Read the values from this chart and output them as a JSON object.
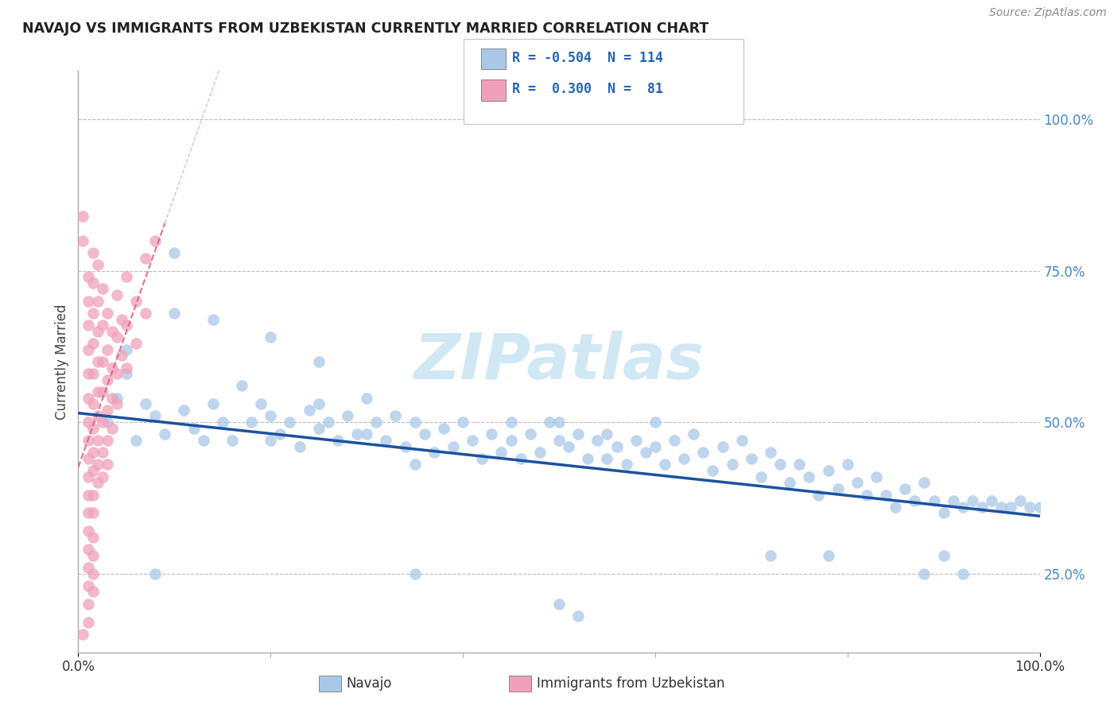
{
  "title": "NAVAJO VS IMMIGRANTS FROM UZBEKISTAN CURRENTLY MARRIED CORRELATION CHART",
  "source": "Source: ZipAtlas.com",
  "ylabel": "Currently Married",
  "ylabel_right_labels": [
    "100.0%",
    "75.0%",
    "50.0%",
    "25.0%"
  ],
  "ylabel_right_positions": [
    1.0,
    0.75,
    0.5,
    0.25
  ],
  "navajo_color": "#a8c8e8",
  "uzbekistan_color": "#f0a0b8",
  "navajo_line_color": "#1a52a0",
  "uzbekistan_line_color": "#e06080",
  "watermark_color": "#d0e8f4",
  "background_color": "#ffffff",
  "grid_color": "#cccccc",
  "navajo_R": -0.504,
  "navajo_N": 114,
  "uzbekistan_R": 0.3,
  "uzbekistan_N": 81,
  "xlim": [
    0.0,
    1.0
  ],
  "ylim": [
    0.12,
    1.08
  ],
  "navajo_scatter": [
    [
      0.03,
      0.5
    ],
    [
      0.04,
      0.54
    ],
    [
      0.05,
      0.62
    ],
    [
      0.05,
      0.58
    ],
    [
      0.06,
      0.47
    ],
    [
      0.07,
      0.53
    ],
    [
      0.08,
      0.51
    ],
    [
      0.09,
      0.48
    ],
    [
      0.1,
      0.68
    ],
    [
      0.11,
      0.52
    ],
    [
      0.12,
      0.49
    ],
    [
      0.13,
      0.47
    ],
    [
      0.14,
      0.53
    ],
    [
      0.15,
      0.5
    ],
    [
      0.16,
      0.47
    ],
    [
      0.17,
      0.56
    ],
    [
      0.18,
      0.5
    ],
    [
      0.19,
      0.53
    ],
    [
      0.2,
      0.47
    ],
    [
      0.2,
      0.51
    ],
    [
      0.21,
      0.48
    ],
    [
      0.22,
      0.5
    ],
    [
      0.23,
      0.46
    ],
    [
      0.24,
      0.52
    ],
    [
      0.25,
      0.49
    ],
    [
      0.25,
      0.53
    ],
    [
      0.26,
      0.5
    ],
    [
      0.27,
      0.47
    ],
    [
      0.28,
      0.51
    ],
    [
      0.29,
      0.48
    ],
    [
      0.3,
      0.54
    ],
    [
      0.3,
      0.48
    ],
    [
      0.31,
      0.5
    ],
    [
      0.32,
      0.47
    ],
    [
      0.33,
      0.51
    ],
    [
      0.34,
      0.46
    ],
    [
      0.35,
      0.5
    ],
    [
      0.35,
      0.43
    ],
    [
      0.36,
      0.48
    ],
    [
      0.37,
      0.45
    ],
    [
      0.38,
      0.49
    ],
    [
      0.39,
      0.46
    ],
    [
      0.4,
      0.5
    ],
    [
      0.41,
      0.47
    ],
    [
      0.42,
      0.44
    ],
    [
      0.43,
      0.48
    ],
    [
      0.44,
      0.45
    ],
    [
      0.45,
      0.5
    ],
    [
      0.45,
      0.47
    ],
    [
      0.46,
      0.44
    ],
    [
      0.47,
      0.48
    ],
    [
      0.48,
      0.45
    ],
    [
      0.49,
      0.5
    ],
    [
      0.5,
      0.47
    ],
    [
      0.5,
      0.5
    ],
    [
      0.51,
      0.46
    ],
    [
      0.52,
      0.48
    ],
    [
      0.53,
      0.44
    ],
    [
      0.54,
      0.47
    ],
    [
      0.55,
      0.44
    ],
    [
      0.55,
      0.48
    ],
    [
      0.56,
      0.46
    ],
    [
      0.57,
      0.43
    ],
    [
      0.58,
      0.47
    ],
    [
      0.59,
      0.45
    ],
    [
      0.6,
      0.5
    ],
    [
      0.6,
      0.46
    ],
    [
      0.61,
      0.43
    ],
    [
      0.62,
      0.47
    ],
    [
      0.63,
      0.44
    ],
    [
      0.64,
      0.48
    ],
    [
      0.65,
      0.45
    ],
    [
      0.66,
      0.42
    ],
    [
      0.67,
      0.46
    ],
    [
      0.68,
      0.43
    ],
    [
      0.69,
      0.47
    ],
    [
      0.7,
      0.44
    ],
    [
      0.71,
      0.41
    ],
    [
      0.72,
      0.45
    ],
    [
      0.73,
      0.43
    ],
    [
      0.74,
      0.4
    ],
    [
      0.75,
      0.43
    ],
    [
      0.76,
      0.41
    ],
    [
      0.77,
      0.38
    ],
    [
      0.78,
      0.42
    ],
    [
      0.79,
      0.39
    ],
    [
      0.8,
      0.43
    ],
    [
      0.81,
      0.4
    ],
    [
      0.82,
      0.38
    ],
    [
      0.83,
      0.41
    ],
    [
      0.84,
      0.38
    ],
    [
      0.85,
      0.36
    ],
    [
      0.86,
      0.39
    ],
    [
      0.87,
      0.37
    ],
    [
      0.88,
      0.4
    ],
    [
      0.89,
      0.37
    ],
    [
      0.9,
      0.35
    ],
    [
      0.91,
      0.37
    ],
    [
      0.92,
      0.36
    ],
    [
      0.93,
      0.37
    ],
    [
      0.94,
      0.36
    ],
    [
      0.95,
      0.37
    ],
    [
      0.96,
      0.36
    ],
    [
      0.97,
      0.36
    ],
    [
      0.98,
      0.37
    ],
    [
      0.99,
      0.36
    ],
    [
      1.0,
      0.36
    ],
    [
      0.1,
      0.78
    ],
    [
      0.14,
      0.67
    ],
    [
      0.2,
      0.64
    ],
    [
      0.25,
      0.6
    ],
    [
      0.08,
      0.25
    ],
    [
      0.35,
      0.25
    ],
    [
      0.5,
      0.2
    ],
    [
      0.52,
      0.18
    ],
    [
      0.72,
      0.28
    ],
    [
      0.78,
      0.28
    ],
    [
      0.88,
      0.25
    ],
    [
      0.9,
      0.28
    ],
    [
      0.92,
      0.25
    ]
  ],
  "uzbekistan_scatter": [
    [
      0.005,
      0.84
    ],
    [
      0.005,
      0.8
    ],
    [
      0.01,
      0.74
    ],
    [
      0.01,
      0.7
    ],
    [
      0.01,
      0.66
    ],
    [
      0.01,
      0.62
    ],
    [
      0.01,
      0.58
    ],
    [
      0.01,
      0.54
    ],
    [
      0.01,
      0.5
    ],
    [
      0.01,
      0.47
    ],
    [
      0.01,
      0.44
    ],
    [
      0.01,
      0.41
    ],
    [
      0.01,
      0.38
    ],
    [
      0.01,
      0.35
    ],
    [
      0.01,
      0.32
    ],
    [
      0.01,
      0.29
    ],
    [
      0.01,
      0.26
    ],
    [
      0.01,
      0.23
    ],
    [
      0.01,
      0.2
    ],
    [
      0.01,
      0.17
    ],
    [
      0.015,
      0.78
    ],
    [
      0.015,
      0.73
    ],
    [
      0.015,
      0.68
    ],
    [
      0.015,
      0.63
    ],
    [
      0.015,
      0.58
    ],
    [
      0.015,
      0.53
    ],
    [
      0.015,
      0.49
    ],
    [
      0.015,
      0.45
    ],
    [
      0.015,
      0.42
    ],
    [
      0.015,
      0.38
    ],
    [
      0.015,
      0.35
    ],
    [
      0.015,
      0.31
    ],
    [
      0.015,
      0.28
    ],
    [
      0.015,
      0.25
    ],
    [
      0.015,
      0.22
    ],
    [
      0.02,
      0.76
    ],
    [
      0.02,
      0.7
    ],
    [
      0.02,
      0.65
    ],
    [
      0.02,
      0.6
    ],
    [
      0.02,
      0.55
    ],
    [
      0.02,
      0.51
    ],
    [
      0.02,
      0.47
    ],
    [
      0.02,
      0.43
    ],
    [
      0.02,
      0.4
    ],
    [
      0.025,
      0.72
    ],
    [
      0.025,
      0.66
    ],
    [
      0.025,
      0.6
    ],
    [
      0.025,
      0.55
    ],
    [
      0.025,
      0.5
    ],
    [
      0.025,
      0.45
    ],
    [
      0.025,
      0.41
    ],
    [
      0.03,
      0.68
    ],
    [
      0.03,
      0.62
    ],
    [
      0.03,
      0.57
    ],
    [
      0.03,
      0.52
    ],
    [
      0.03,
      0.47
    ],
    [
      0.03,
      0.43
    ],
    [
      0.035,
      0.65
    ],
    [
      0.035,
      0.59
    ],
    [
      0.035,
      0.54
    ],
    [
      0.035,
      0.49
    ],
    [
      0.04,
      0.71
    ],
    [
      0.04,
      0.64
    ],
    [
      0.04,
      0.58
    ],
    [
      0.04,
      0.53
    ],
    [
      0.045,
      0.67
    ],
    [
      0.045,
      0.61
    ],
    [
      0.05,
      0.74
    ],
    [
      0.05,
      0.66
    ],
    [
      0.05,
      0.59
    ],
    [
      0.06,
      0.7
    ],
    [
      0.06,
      0.63
    ],
    [
      0.07,
      0.77
    ],
    [
      0.07,
      0.68
    ],
    [
      0.08,
      0.8
    ],
    [
      0.005,
      0.15
    ]
  ]
}
